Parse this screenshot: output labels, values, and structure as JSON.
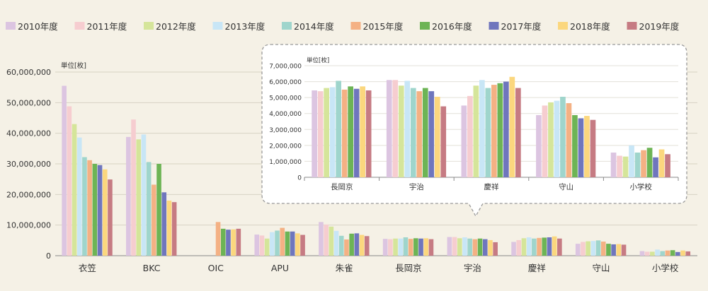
{
  "chart_data": [
    {
      "type": "bar",
      "title": "",
      "ylabel": "単位[枚]",
      "xlabel": "",
      "ylim": [
        0,
        60000000
      ],
      "yticks": [
        "0",
        "10,000,000",
        "20,000,000",
        "30,000,000",
        "40,000,000",
        "50,000,000",
        "60,000,000"
      ],
      "legend_position": "top",
      "categories": [
        "衣笠",
        "BKC",
        "OIC",
        "APU",
        "朱雀",
        "長岡京",
        "宇治",
        "慶祥",
        "守山",
        "小学校"
      ],
      "series": [
        {
          "name": "2010年度",
          "color": "#dcc5e1",
          "values": [
            55500000,
            38800000,
            null,
            6900000,
            11000000,
            5500000,
            6100000,
            4500000,
            3900000,
            1500000
          ]
        },
        {
          "name": "2011年度",
          "color": "#f6cdd0",
          "values": [
            48800000,
            44500000,
            null,
            6600000,
            10200000,
            5400000,
            6100000,
            5100000,
            4500000,
            1300000
          ]
        },
        {
          "name": "2012年度",
          "color": "#d5e59a",
          "values": [
            43000000,
            38000000,
            null,
            5600000,
            9500000,
            5600000,
            5700000,
            5700000,
            4700000,
            1300000
          ]
        },
        {
          "name": "2013年度",
          "color": "#c8e6f6",
          "values": [
            38600000,
            39600000,
            null,
            7700000,
            8100000,
            5600000,
            6000000,
            6000000,
            4800000,
            2000000
          ]
        },
        {
          "name": "2014年度",
          "color": "#9fd5cc",
          "values": [
            32200000,
            30600000,
            null,
            8200000,
            6500000,
            6000000,
            5600000,
            5600000,
            5000000,
            1500000
          ]
        },
        {
          "name": "2015年度",
          "color": "#f4b184",
          "values": [
            31200000,
            23200000,
            11000000,
            9100000,
            5300000,
            5500000,
            5400000,
            5800000,
            4600000,
            1700000
          ]
        },
        {
          "name": "2016年度",
          "color": "#6db455",
          "values": [
            30000000,
            30000000,
            8800000,
            7900000,
            7200000,
            5700000,
            5600000,
            5900000,
            3900000,
            1800000
          ]
        },
        {
          "name": "2017年度",
          "color": "#6f76bd",
          "values": [
            29600000,
            20700000,
            8500000,
            7900000,
            7300000,
            5600000,
            5400000,
            6000000,
            3700000,
            1200000
          ]
        },
        {
          "name": "2018年度",
          "color": "#fbd77e",
          "values": [
            28200000,
            18000000,
            8600000,
            7300000,
            6800000,
            5700000,
            5100000,
            6300000,
            3800000,
            1700000
          ]
        },
        {
          "name": "2019年度",
          "color": "#c67b83",
          "values": [
            24900000,
            17500000,
            8800000,
            6800000,
            6400000,
            5400000,
            4400000,
            5600000,
            3600000,
            1400000
          ]
        }
      ]
    },
    {
      "type": "bar",
      "title": "",
      "ylabel": "単位[枚]",
      "xlabel": "",
      "ylim": [
        0,
        7000000
      ],
      "yticks": [
        "0",
        "1,000,000",
        "2,000,000",
        "3,000,000",
        "4,000,000",
        "5,000,000",
        "6,000,000",
        "7,000,000"
      ],
      "categories": [
        "長岡京",
        "宇治",
        "慶祥",
        "守山",
        "小学校"
      ],
      "series": [
        {
          "name": "2010年度",
          "color": "#dcc5e1",
          "values": [
            5450000,
            6100000,
            4500000,
            3900000,
            1550000
          ]
        },
        {
          "name": "2011年度",
          "color": "#f6cdd0",
          "values": [
            5400000,
            6100000,
            5100000,
            4500000,
            1350000
          ]
        },
        {
          "name": "2012年度",
          "color": "#d5e59a",
          "values": [
            5600000,
            5750000,
            5750000,
            4700000,
            1300000
          ]
        },
        {
          "name": "2013年度",
          "color": "#c8e6f6",
          "values": [
            5650000,
            6050000,
            6100000,
            4800000,
            2000000
          ]
        },
        {
          "name": "2014年度",
          "color": "#9fd5cc",
          "values": [
            6050000,
            5600000,
            5600000,
            5050000,
            1550000
          ]
        },
        {
          "name": "2015年度",
          "color": "#f4b184",
          "values": [
            5500000,
            5400000,
            5800000,
            4650000,
            1700000
          ]
        },
        {
          "name": "2016年度",
          "color": "#6db455",
          "values": [
            5700000,
            5600000,
            5900000,
            3900000,
            1850000
          ]
        },
        {
          "name": "2017年度",
          "color": "#6f76bd",
          "values": [
            5550000,
            5400000,
            6000000,
            3700000,
            1250000
          ]
        },
        {
          "name": "2018年度",
          "color": "#fbd77e",
          "values": [
            5700000,
            5050000,
            6300000,
            3850000,
            1750000
          ]
        },
        {
          "name": "2019年度",
          "color": "#c67b83",
          "values": [
            5450000,
            4450000,
            5600000,
            3600000,
            1450000
          ]
        }
      ]
    }
  ]
}
